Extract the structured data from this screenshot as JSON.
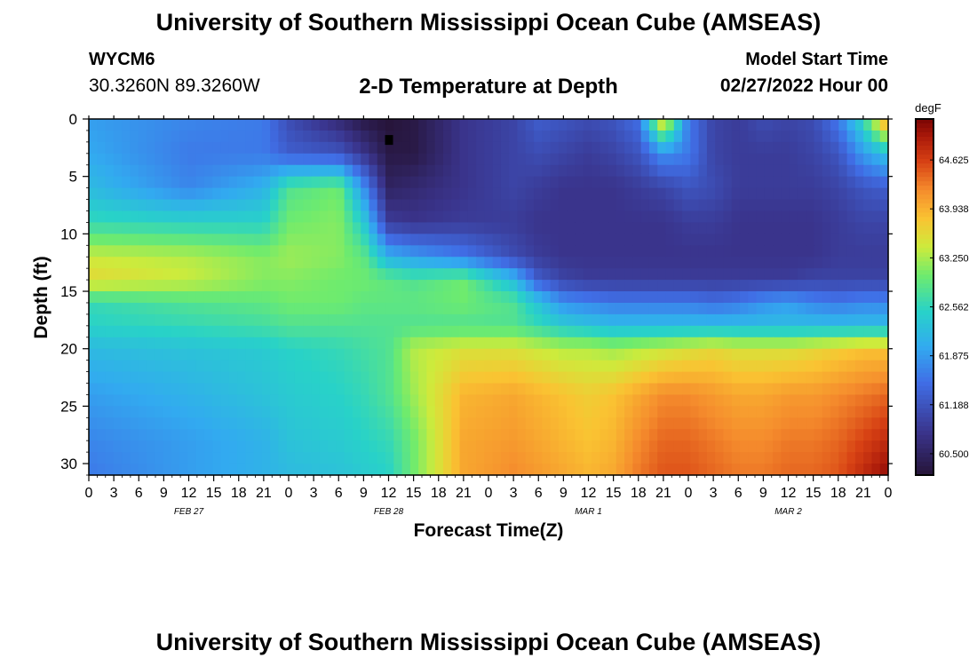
{
  "header": {
    "title": "University of Southern Mississippi Ocean Cube (AMSEAS)",
    "station": "WYCM6",
    "coordinates": "30.3260N  89.3260W",
    "subtitle": "2-D Temperature at Depth",
    "model_start_label": "Model Start Time",
    "model_start_value": "02/27/2022 Hour 00"
  },
  "footer": {
    "title": "University of Southern Mississippi Ocean Cube (AMSEAS)"
  },
  "chart_data": {
    "type": "heatmap",
    "title": "2-D Temperature at Depth",
    "xlabel": "Forecast Time(Z)",
    "ylabel": "Depth (ft)",
    "x_range_hours": [
      0,
      96
    ],
    "y_range_ft": [
      0,
      31
    ],
    "x_tick_labels": [
      "0",
      "3",
      "6",
      "9",
      "12",
      "15",
      "18",
      "21",
      "0",
      "3",
      "6",
      "9",
      "12",
      "15",
      "18",
      "21",
      "0",
      "3",
      "6",
      "9",
      "12",
      "15",
      "18",
      "21",
      "0",
      "3",
      "6",
      "9",
      "12",
      "15",
      "18",
      "21",
      "0"
    ],
    "date_labels": [
      {
        "label": "FEB 27",
        "hour": 12
      },
      {
        "label": "FEB 28",
        "hour": 36
      },
      {
        "label": "MAR 1",
        "hour": 60
      },
      {
        "label": "MAR 2",
        "hour": 84
      }
    ],
    "y_ticks": [
      0,
      5,
      10,
      15,
      20,
      25,
      30
    ],
    "colorbar": {
      "units": "degF",
      "min": 60.2,
      "max": 65.2,
      "ticks": [
        64.625,
        63.938,
        63.25,
        62.562,
        61.875,
        61.188,
        60.5
      ],
      "tick_labels": [
        "64.625",
        "63.938",
        "63.250",
        "62.562",
        "61.875",
        "61.188",
        "60.500"
      ]
    },
    "times_h": [
      0,
      12,
      21,
      24,
      30,
      33,
      36,
      39,
      45,
      51,
      54,
      57,
      60,
      63,
      66,
      69,
      72,
      75,
      78,
      81,
      84,
      87,
      90,
      93,
      96
    ],
    "depths_ft": [
      0,
      3,
      6,
      9,
      12,
      14,
      16,
      18,
      20,
      24,
      28,
      31
    ],
    "temperature_degF": [
      [
        61.9,
        61.7,
        61.6,
        61.1,
        60.6,
        60.3,
        60.2,
        60.3,
        60.8,
        61.0,
        61.3,
        61.2,
        61.1,
        61.2,
        61.5,
        63.8,
        61.6,
        61.0,
        60.9,
        61.1,
        61.0,
        61.1,
        61.6,
        62.6,
        64.3
      ],
      [
        62.0,
        61.6,
        61.6,
        61.3,
        61.2,
        60.8,
        60.3,
        60.3,
        60.8,
        61.0,
        61.1,
        61.0,
        60.9,
        61.0,
        61.2,
        61.8,
        61.6,
        61.0,
        60.9,
        60.9,
        60.9,
        61.0,
        61.2,
        61.9,
        62.3
      ],
      [
        62.2,
        61.7,
        62.1,
        62.8,
        63.0,
        61.8,
        60.5,
        60.6,
        60.8,
        61.0,
        60.9,
        60.8,
        60.8,
        60.8,
        60.9,
        61.0,
        61.2,
        61.1,
        60.9,
        60.9,
        60.9,
        60.9,
        61.0,
        61.2,
        61.3
      ],
      [
        62.6,
        62.5,
        62.5,
        63.0,
        63.1,
        62.4,
        60.9,
        60.8,
        60.9,
        60.9,
        60.8,
        60.8,
        60.8,
        60.8,
        60.8,
        60.8,
        60.9,
        60.9,
        60.8,
        60.8,
        60.8,
        60.8,
        60.9,
        61.0,
        61.0
      ],
      [
        63.4,
        63.3,
        63.1,
        63.2,
        63.1,
        62.9,
        62.1,
        61.9,
        61.6,
        61.1,
        60.9,
        60.8,
        60.8,
        60.8,
        60.8,
        60.8,
        60.8,
        60.8,
        60.8,
        60.8,
        60.8,
        60.8,
        60.9,
        60.9,
        60.9
      ],
      [
        63.6,
        63.4,
        63.1,
        63.1,
        63.0,
        63.0,
        62.9,
        62.8,
        63.0,
        62.2,
        61.3,
        61.0,
        60.9,
        60.9,
        60.9,
        60.9,
        60.9,
        60.9,
        60.9,
        60.9,
        60.9,
        61.0,
        61.0,
        61.0,
        61.0
      ],
      [
        62.6,
        62.8,
        62.9,
        63.0,
        63.0,
        62.9,
        62.9,
        62.9,
        63.0,
        62.8,
        62.3,
        61.8,
        61.7,
        61.6,
        61.6,
        61.6,
        61.6,
        61.5,
        61.6,
        61.8,
        61.9,
        61.7,
        61.6,
        61.7,
        61.7
      ],
      [
        62.5,
        62.6,
        62.7,
        62.8,
        62.8,
        62.8,
        62.8,
        62.8,
        62.8,
        62.8,
        62.6,
        62.4,
        62.3,
        62.2,
        62.2,
        62.2,
        62.2,
        62.2,
        62.2,
        62.2,
        62.2,
        62.2,
        62.2,
        62.2,
        62.2
      ],
      [
        62.2,
        62.3,
        62.4,
        62.5,
        62.6,
        62.7,
        62.8,
        63.3,
        63.5,
        63.5,
        63.4,
        63.3,
        63.3,
        63.2,
        63.3,
        63.4,
        63.5,
        63.6,
        63.5,
        63.5,
        63.5,
        63.6,
        63.7,
        63.8,
        63.8
      ],
      [
        61.9,
        62.1,
        62.3,
        62.4,
        62.5,
        62.6,
        62.8,
        63.2,
        63.9,
        64.0,
        63.9,
        63.8,
        63.7,
        63.8,
        64.0,
        64.2,
        64.2,
        64.1,
        64.0,
        64.0,
        64.1,
        64.1,
        64.2,
        64.3,
        64.4
      ],
      [
        61.7,
        61.9,
        62.1,
        62.3,
        62.4,
        62.5,
        62.6,
        63.0,
        64.0,
        64.1,
        64.0,
        63.9,
        63.8,
        63.9,
        64.2,
        64.4,
        64.4,
        64.3,
        64.2,
        64.2,
        64.3,
        64.3,
        64.4,
        64.6,
        64.8
      ],
      [
        61.6,
        61.9,
        62.1,
        62.2,
        62.3,
        62.4,
        62.5,
        63.0,
        64.0,
        64.2,
        64.1,
        64.0,
        63.9,
        64.0,
        64.3,
        64.5,
        64.5,
        64.4,
        64.3,
        64.3,
        64.4,
        64.4,
        64.5,
        64.8,
        65.1
      ]
    ]
  }
}
